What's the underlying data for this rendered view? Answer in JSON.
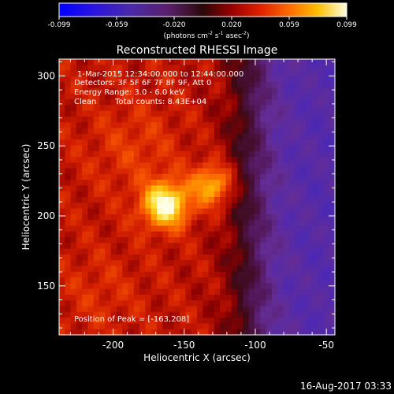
{
  "colorbar": {
    "tick_labels": [
      "-0.099",
      "-0.059",
      "-0.020",
      "0.020",
      "0.059",
      "0.099"
    ],
    "range": [
      -0.099,
      0.099
    ],
    "unit_text": "(photons cm",
    "unit_sup1": "-2",
    "unit_mid": " s",
    "unit_sup2": "-1",
    "unit_end": " asec",
    "unit_sup3": "-2",
    "unit_close": ")"
  },
  "title": "Reconstructed RHESSI Image",
  "annotations": {
    "time_range": "1-Mar-2015 12:34:00.000 to 12:44:00.000",
    "detectors": "Detectors: 3F 5F 6F 7F 8F 9F, Att 0",
    "energy_range": "Energy Range: 3.0 - 6.0 keV",
    "clean_label": "Clean",
    "total_counts": "Total counts: 8.43E+04",
    "peak_position": "Position of Peak = [-163,208]"
  },
  "axes": {
    "xlabel": "Heliocentric X (arcsec)",
    "ylabel": "Heliocentric Y (arcsec)",
    "xlim": [
      -238,
      -44
    ],
    "ylim": [
      115,
      312
    ],
    "x_ticks": [
      -200,
      -150,
      -100,
      -50
    ],
    "x_tick_labels": [
      "-200",
      "-150",
      "-100",
      "-50"
    ],
    "y_ticks": [
      150,
      200,
      250,
      300
    ],
    "y_tick_labels": [
      "150",
      "200",
      "250",
      "300"
    ]
  },
  "chart_data": {
    "type": "heatmap",
    "title": "Reconstructed RHESSI Image",
    "xlabel": "Heliocentric X (arcsec)",
    "ylabel": "Heliocentric Y (arcsec)",
    "xlim": [
      -238,
      -44
    ],
    "ylim": [
      115,
      312
    ],
    "value_range": [
      -0.099,
      0.099
    ],
    "peak": [
      -163,
      208
    ],
    "colormap": "red-temperature"
  },
  "timestamp": "16-Aug-2017 03:33"
}
